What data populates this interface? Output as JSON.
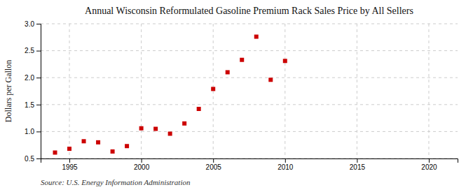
{
  "chart_data": {
    "type": "scatter",
    "title": "Annual Wisconsin Reformulated Gasoline Premium Rack Sales Price by All Sellers",
    "ylabel": "Dollars per Gallon",
    "source": "Source: U.S. Energy Information Administration",
    "x": [
      1994,
      1995,
      1996,
      1997,
      1998,
      1999,
      2000,
      2001,
      2002,
      2003,
      2004,
      2005,
      2006,
      2007,
      2008,
      2009,
      2010
    ],
    "values": [
      0.61,
      0.68,
      0.82,
      0.8,
      0.63,
      0.73,
      1.06,
      1.05,
      0.96,
      1.15,
      1.42,
      1.79,
      2.1,
      2.33,
      2.76,
      1.96,
      2.31
    ],
    "color": "#cc0000",
    "marker": "square",
    "xlim": [
      1993,
      2022
    ],
    "xticks": [
      1995,
      2000,
      2005,
      2010,
      2015,
      2020
    ],
    "ylim": [
      0.5,
      3.0
    ],
    "yticks": [
      0.5,
      {
        "value": 1.0,
        "label": "1.0"
      },
      1.5,
      {
        "value": 2.0,
        "label": "2.0"
      },
      2.5,
      {
        "value": 3.0,
        "label": "3.0"
      }
    ],
    "grid": true
  }
}
